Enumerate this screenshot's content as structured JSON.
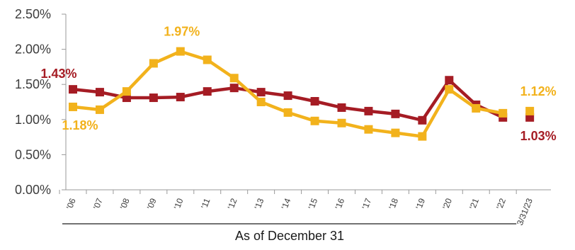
{
  "chart_data": {
    "type": "line",
    "categories": [
      "'06",
      "'07",
      "'08",
      "'09",
      "'10",
      "'11",
      "'12",
      "'13",
      "'14",
      "'15",
      "'16",
      "'17",
      "'18",
      "'19",
      "'20",
      "'21",
      "'22",
      "3/31/23"
    ],
    "series": [
      {
        "color": "#A51C24",
        "values": [
          1.43,
          1.39,
          1.31,
          1.31,
          1.32,
          1.4,
          1.45,
          1.39,
          1.34,
          1.26,
          1.17,
          1.12,
          1.08,
          0.99,
          1.56,
          1.21,
          1.03,
          1.03
        ],
        "connected_points": 17
      },
      {
        "color": "#F2B21C",
        "values": [
          1.18,
          1.14,
          1.4,
          1.8,
          1.97,
          1.85,
          1.59,
          1.25,
          1.1,
          0.98,
          0.95,
          0.86,
          0.81,
          0.76,
          1.43,
          1.16,
          1.09,
          1.12
        ],
        "connected_points": 17
      }
    ],
    "ylim": [
      0,
      2.5
    ],
    "yticks": [
      "0.00%",
      "0.50%",
      "1.00%",
      "1.50%",
      "2.00%",
      "2.50%"
    ],
    "xlabel": "As of  December 31",
    "grid": false,
    "annotations": [
      {
        "text": "1.43%",
        "series": 0,
        "point": 0,
        "position": "above-left"
      },
      {
        "text": "1.18%",
        "series": 1,
        "point": 0,
        "position": "below"
      },
      {
        "text": "1.97%",
        "series": 1,
        "point": 4,
        "position": "above"
      },
      {
        "text": "1.12%",
        "series": 1,
        "point": 17,
        "position": "above"
      },
      {
        "text": "1.03%",
        "series": 0,
        "point": 17,
        "position": "below"
      }
    ]
  }
}
